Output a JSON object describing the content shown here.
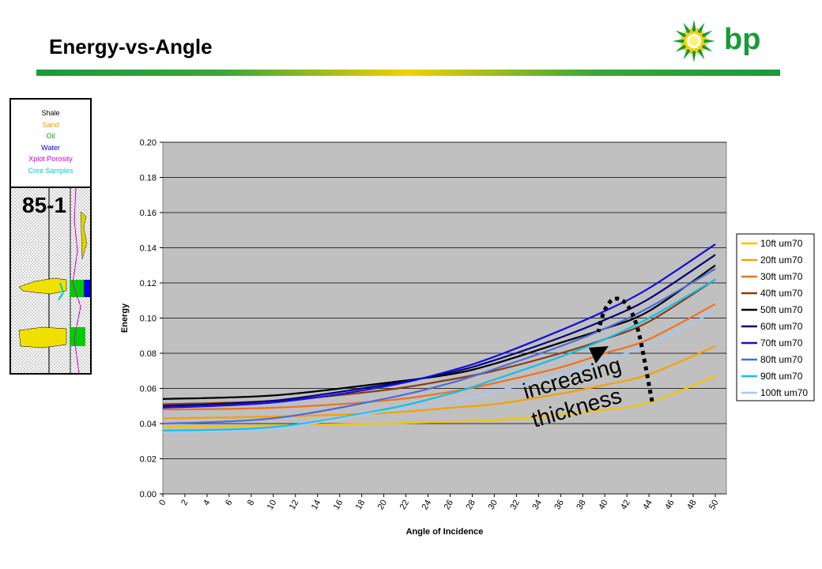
{
  "slide": {
    "title": "Energy-vs-Angle",
    "logo_text": "bp",
    "brand_colors": {
      "green": "#1a9a3a",
      "yellow": "#f5d000"
    }
  },
  "well_log": {
    "legend": [
      {
        "label": "Shale",
        "color": "#000000"
      },
      {
        "label": "Sand",
        "color": "#e89a00"
      },
      {
        "label": "Oil",
        "color": "#00aa00"
      },
      {
        "label": "Water",
        "color": "#0000cc"
      },
      {
        "label": "Xplot Porosity",
        "color": "#cc00cc"
      },
      {
        "label": "Core Samples",
        "color": "#00cccc"
      }
    ],
    "well_name": "85-1"
  },
  "annotation": {
    "line1": "increasing",
    "line2": "thickness"
  },
  "chart_data": {
    "type": "line",
    "xlabel": "Angle of Incidence",
    "ylabel": "Energy",
    "xlim": [
      0,
      51
    ],
    "ylim": [
      0,
      0.2
    ],
    "x_ticks": [
      0,
      2,
      4,
      6,
      8,
      10,
      12,
      14,
      16,
      18,
      20,
      22,
      24,
      26,
      28,
      30,
      32,
      34,
      36,
      38,
      40,
      42,
      44,
      46,
      48,
      50
    ],
    "y_ticks": [
      "0.00",
      "0.02",
      "0.04",
      "0.06",
      "0.08",
      "0.10",
      "0.12",
      "0.14",
      "0.16",
      "0.18",
      "0.20"
    ],
    "grid": "horizontal",
    "legend_position": "right",
    "plot_background": "#c0c0c0",
    "x": [
      0,
      10,
      20,
      26,
      30,
      36,
      40,
      44,
      50
    ],
    "series": [
      {
        "name": "10ft um70",
        "color": "#f5c400",
        "values": [
          0.038,
          0.039,
          0.04,
          0.041,
          0.042,
          0.045,
          0.048,
          0.052,
          0.067
        ]
      },
      {
        "name": "20ft um70",
        "color": "#f5a000",
        "values": [
          0.043,
          0.044,
          0.046,
          0.049,
          0.051,
          0.057,
          0.062,
          0.068,
          0.084
        ]
      },
      {
        "name": "30ft um70",
        "color": "#f07020",
        "values": [
          0.048,
          0.049,
          0.053,
          0.058,
          0.063,
          0.072,
          0.08,
          0.088,
          0.108
        ]
      },
      {
        "name": "40ft um70",
        "color": "#8b3a10",
        "values": [
          0.051,
          0.053,
          0.059,
          0.065,
          0.07,
          0.08,
          0.088,
          0.098,
          0.122
        ]
      },
      {
        "name": "50ft um70",
        "color": "#000000",
        "values": [
          0.054,
          0.056,
          0.063,
          0.068,
          0.074,
          0.086,
          0.094,
          0.104,
          0.13
        ]
      },
      {
        "name": "60ft um70",
        "color": "#000080",
        "values": [
          0.05,
          0.053,
          0.062,
          0.069,
          0.076,
          0.089,
          0.099,
          0.111,
          0.136
        ]
      },
      {
        "name": "70ft um70",
        "color": "#1010dd",
        "values": [
          0.049,
          0.052,
          0.061,
          0.07,
          0.078,
          0.093,
          0.104,
          0.117,
          0.142
        ]
      },
      {
        "name": "80ft um70",
        "color": "#4a6be0",
        "values": [
          0.04,
          0.043,
          0.054,
          0.063,
          0.071,
          0.084,
          0.094,
          0.106,
          0.128
        ]
      },
      {
        "name": "90ft um70",
        "color": "#10c0e8",
        "values": [
          0.036,
          0.038,
          0.048,
          0.057,
          0.065,
          0.078,
          0.088,
          0.1,
          0.122
        ]
      },
      {
        "name": "100ft um70",
        "color": "#a8c8f0",
        "values": [
          0.035,
          0.037,
          0.047,
          0.052,
          0.058,
          0.068,
          0.076,
          0.085,
          0.104
        ]
      }
    ]
  }
}
